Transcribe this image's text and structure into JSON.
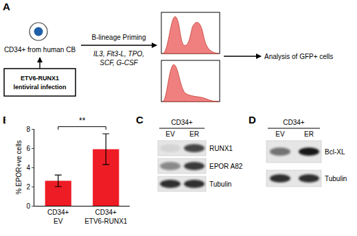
{
  "panel_labels": [
    "A",
    "B",
    "C",
    "D"
  ],
  "panel_a": {
    "cell_label": "CD34+ from human CB",
    "infection_box": [
      "ETV6-RUNX1",
      "lentiviral infection"
    ],
    "arrow_label": "B-lineage Priming",
    "cytokines": "IL3, Flt3-L, TPO, SCF, G-CSF",
    "analysis": "Analysis of GFP+ cells"
  },
  "chart_data": {
    "type": "bar",
    "categories": [
      "CD34+ EV",
      "CD34+ ETV6-RUNX1"
    ],
    "values": [
      2.6,
      5.9
    ],
    "errors": [
      0.6,
      1.6
    ],
    "color": "#ee1c25",
    "y_label": "% EPOR+ve cells",
    "ylim": [
      0,
      8
    ],
    "yticks": [
      0,
      2,
      4,
      6,
      8
    ],
    "grid": false,
    "annotations": [
      {
        "text": "**"
      }
    ]
  },
  "panel_c": {
    "header": "CD34+",
    "lanes": [
      "EV",
      "ER"
    ],
    "rows": [
      "RUNX1",
      "EPOR A82",
      "Tubulin"
    ]
  },
  "panel_d": {
    "header": "CD34+",
    "lanes": [
      "EV",
      "ER"
    ],
    "rows": [
      "Bcl-XL",
      "Tubulin"
    ]
  }
}
